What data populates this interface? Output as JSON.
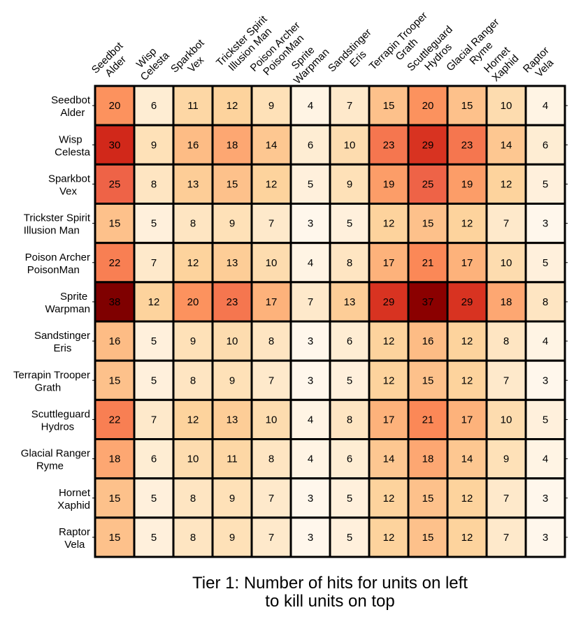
{
  "chart_data": {
    "type": "heatmap",
    "title": "Tier 1: Number of hits for units on left\nto kill units on top",
    "title_lines": [
      "Tier 1: Number of hits for units on left",
      "to kill units on top"
    ],
    "colormap": [
      "#fff7ec",
      "#fee8c8",
      "#fdd49e",
      "#fdbb84",
      "#fc8d59",
      "#ef6548",
      "#d7301f",
      "#b30000",
      "#7f0000"
    ],
    "vmin": 3,
    "vmax": 38,
    "columns": [
      [
        "Seedbot",
        "Alder"
      ],
      [
        "Wisp",
        "Celesta"
      ],
      [
        "Sparkbot",
        "Vex"
      ],
      [
        "Trickster Spirit",
        "Illusion Man"
      ],
      [
        "Poison Archer",
        "PoisonMan"
      ],
      [
        "Sprite",
        "Warpman"
      ],
      [
        "Sandstinger",
        "Eris"
      ],
      [
        "Terrapin Trooper",
        "Grath"
      ],
      [
        "Scuttleguard",
        "Hydros"
      ],
      [
        "Glacial Ranger",
        "Ryme"
      ],
      [
        "Hornet",
        "Xaphid"
      ],
      [
        "Raptor",
        "Vela"
      ]
    ],
    "rows": [
      [
        "Seedbot",
        "Alder"
      ],
      [
        "Wisp",
        "Celesta"
      ],
      [
        "Sparkbot",
        "Vex"
      ],
      [
        "Trickster Spirit",
        "Illusion Man"
      ],
      [
        "Poison Archer",
        "PoisonMan"
      ],
      [
        "Sprite",
        "Warpman"
      ],
      [
        "Sandstinger",
        "Eris"
      ],
      [
        "Terrapin Trooper",
        "Grath"
      ],
      [
        "Scuttleguard",
        "Hydros"
      ],
      [
        "Glacial Ranger",
        "Ryme"
      ],
      [
        "Hornet",
        "Xaphid"
      ],
      [
        "Raptor",
        "Vela"
      ]
    ],
    "values": [
      [
        20,
        6,
        11,
        12,
        9,
        4,
        7,
        15,
        20,
        15,
        10,
        4
      ],
      [
        30,
        9,
        16,
        18,
        14,
        6,
        10,
        23,
        29,
        23,
        14,
        6
      ],
      [
        25,
        8,
        13,
        15,
        12,
        5,
        9,
        19,
        25,
        19,
        12,
        5
      ],
      [
        15,
        5,
        8,
        9,
        7,
        3,
        5,
        12,
        15,
        12,
        7,
        3
      ],
      [
        22,
        7,
        12,
        13,
        10,
        4,
        8,
        17,
        21,
        17,
        10,
        5
      ],
      [
        38,
        12,
        20,
        23,
        17,
        7,
        13,
        29,
        37,
        29,
        18,
        8
      ],
      [
        16,
        5,
        9,
        10,
        8,
        3,
        6,
        12,
        16,
        12,
        8,
        4
      ],
      [
        15,
        5,
        8,
        9,
        7,
        3,
        5,
        12,
        15,
        12,
        7,
        3
      ],
      [
        22,
        7,
        12,
        13,
        10,
        4,
        8,
        17,
        21,
        17,
        10,
        5
      ],
      [
        18,
        6,
        10,
        11,
        8,
        4,
        6,
        14,
        18,
        14,
        9,
        4
      ],
      [
        15,
        5,
        8,
        9,
        7,
        3,
        5,
        12,
        15,
        12,
        7,
        3
      ],
      [
        15,
        5,
        8,
        9,
        7,
        3,
        5,
        12,
        15,
        12,
        7,
        3
      ]
    ]
  }
}
